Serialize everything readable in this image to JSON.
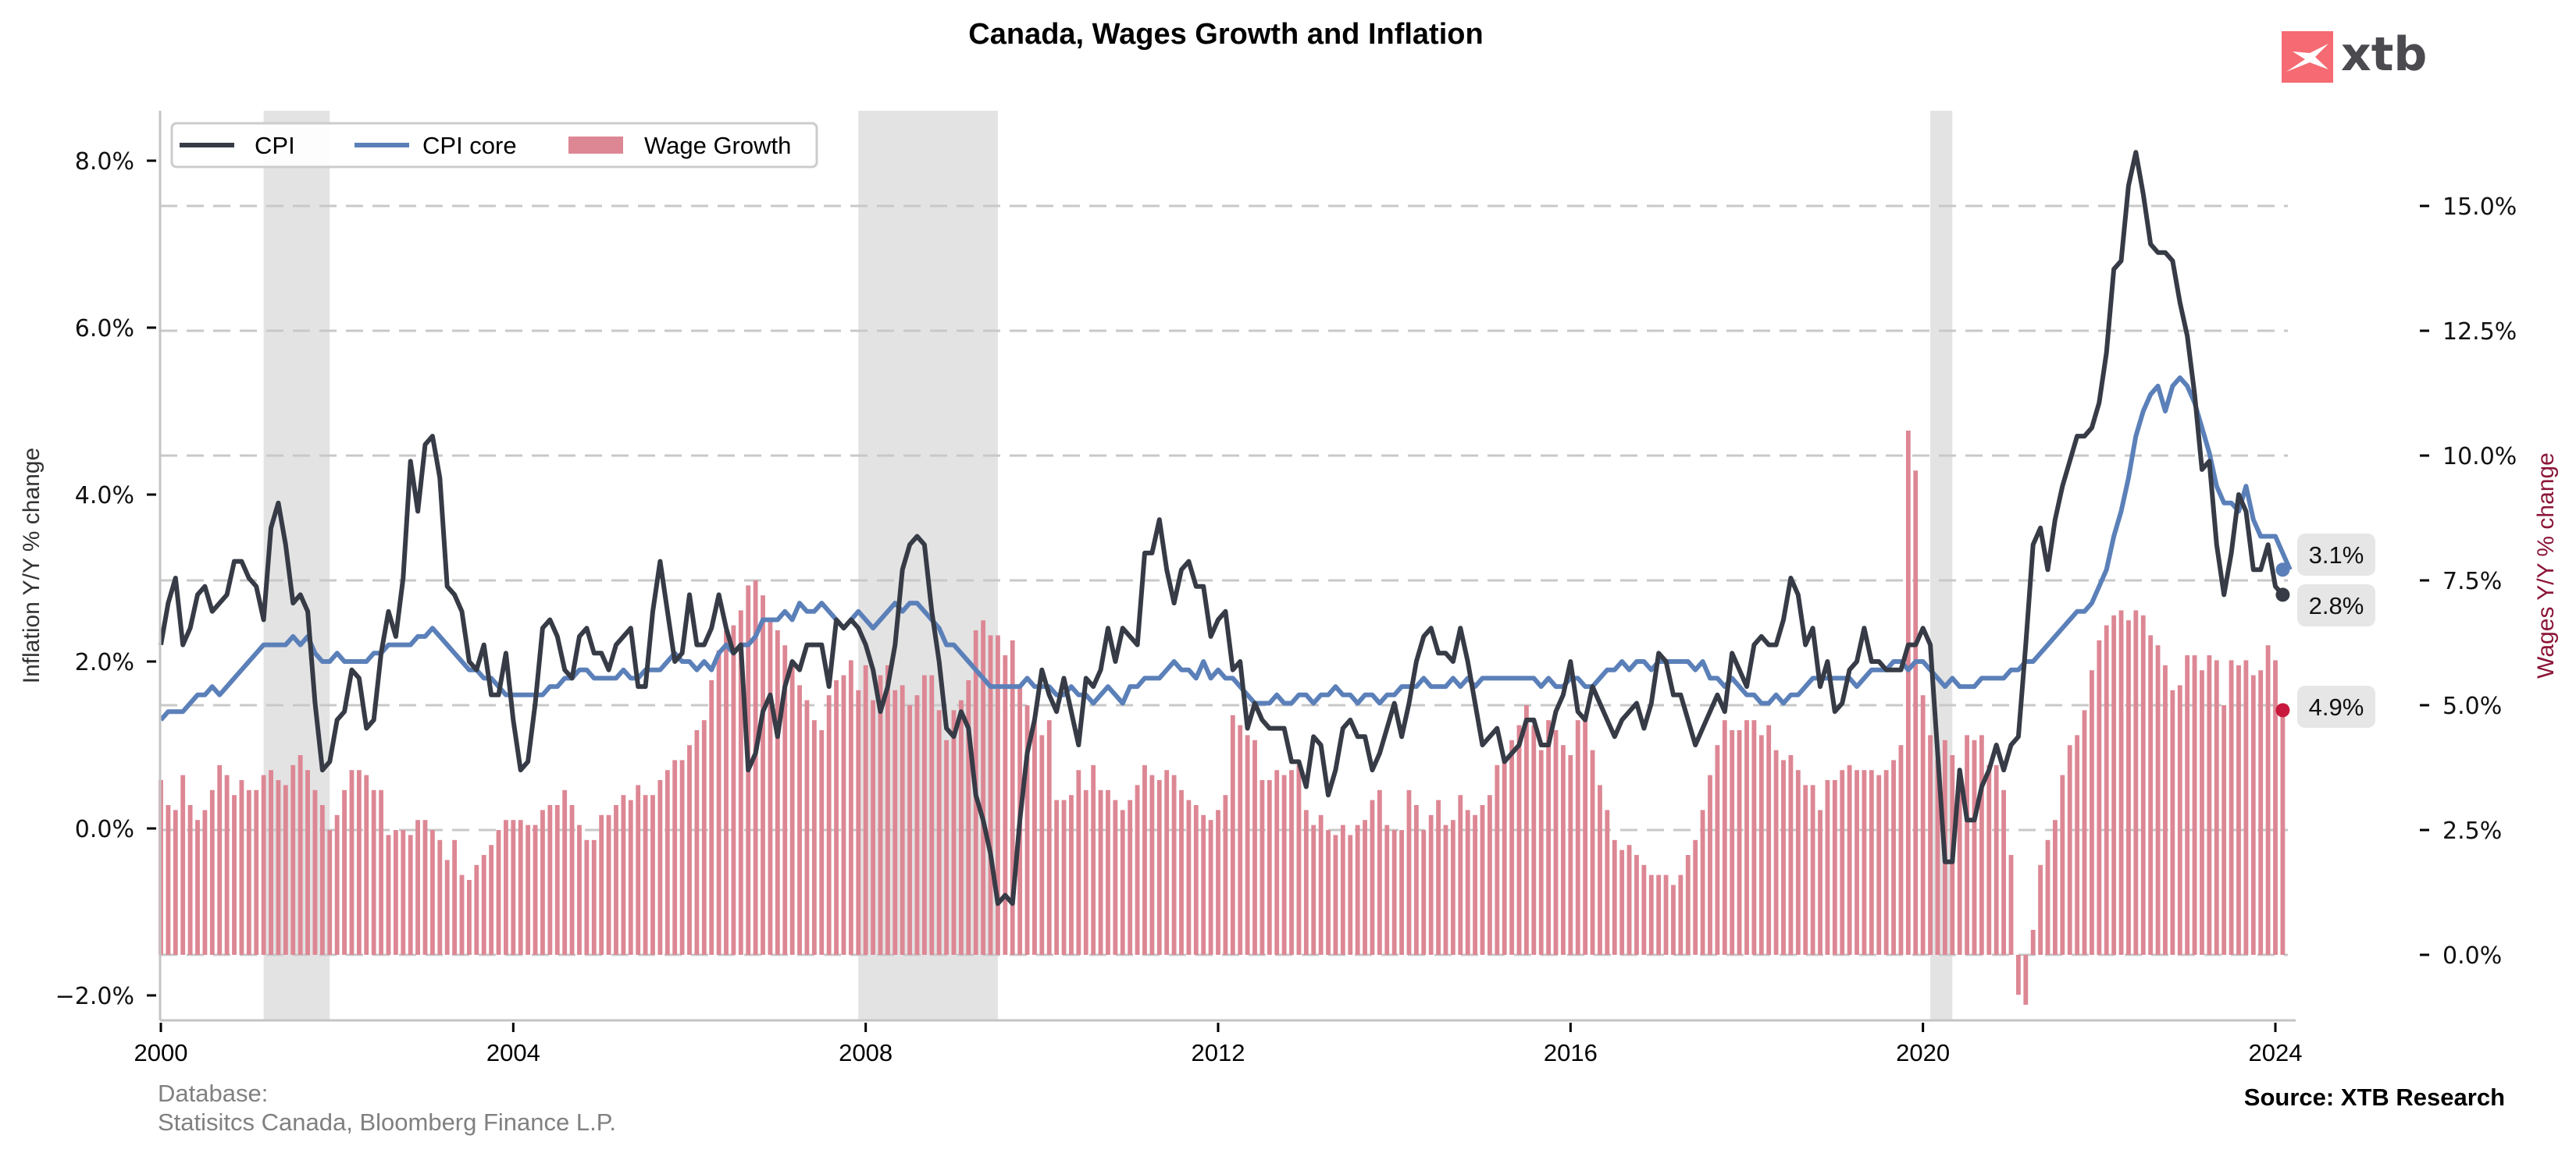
{
  "logo": {
    "text": "xtb",
    "mark_color": "#f56a73"
  },
  "footer": {
    "database_label": "Database:",
    "database_sources": "Statisitcs Canada, Bloomberg Finance L.P.",
    "source": "Source: XTB Research"
  },
  "chart_data": {
    "type": "line+bar",
    "title": "Canada, Wages Growth and Inflation",
    "xlabel": "",
    "ylabel_left": "Inflation Y/Y % change",
    "ylabel_right": "Wages Y/Y % change",
    "x_start": "2000-01",
    "x_frequency": "monthly",
    "x_ticks": [
      "2000",
      "2004",
      "2008",
      "2012",
      "2016",
      "2020",
      "2024"
    ],
    "ylim_left": [
      -2.3,
      8.6
    ],
    "ylim_right": [
      -1.2,
      16.0
    ],
    "yticks_left": [
      "−2.0%",
      "0.0%",
      "2.0%",
      "4.0%",
      "6.0%",
      "8.0%"
    ],
    "yticks_right": [
      "0.0%",
      "2.5%",
      "5.0%",
      "7.5%",
      "10.0%",
      "12.5%",
      "15.0%"
    ],
    "grid": "horizontal dashed (right axis)",
    "legend_position": "top-left",
    "recessions": [
      [
        "2001-03",
        "2001-11"
      ],
      [
        "2007-12",
        "2009-06"
      ],
      [
        "2020-02",
        "2020-04"
      ]
    ],
    "end_labels": [
      {
        "series": "CPI core",
        "text": "3.1%",
        "value": 3.1
      },
      {
        "series": "CPI",
        "text": "2.8%",
        "value": 2.8
      },
      {
        "series": "Wage Growth",
        "text": "4.9%",
        "value": 4.9
      }
    ],
    "series": [
      {
        "name": "CPI",
        "kind": "line",
        "axis": "left",
        "color": "#363b46",
        "values": [
          2.2,
          2.7,
          3.0,
          2.2,
          2.4,
          2.8,
          2.9,
          2.6,
          2.7,
          2.8,
          3.2,
          3.2,
          3.0,
          2.9,
          2.5,
          3.6,
          3.9,
          3.4,
          2.7,
          2.8,
          2.6,
          1.5,
          0.7,
          0.8,
          1.3,
          1.4,
          1.9,
          1.8,
          1.2,
          1.3,
          2.1,
          2.6,
          2.3,
          3.0,
          4.4,
          3.8,
          4.6,
          4.7,
          4.2,
          2.9,
          2.8,
          2.6,
          2.0,
          1.9,
          2.2,
          1.6,
          1.6,
          2.1,
          1.3,
          0.7,
          0.8,
          1.5,
          2.4,
          2.5,
          2.3,
          1.9,
          1.8,
          2.3,
          2.4,
          2.1,
          2.1,
          1.9,
          2.2,
          2.3,
          2.4,
          1.7,
          1.7,
          2.6,
          3.2,
          2.6,
          2.0,
          2.1,
          2.8,
          2.2,
          2.2,
          2.4,
          2.8,
          2.4,
          2.1,
          2.2,
          0.7,
          0.9,
          1.4,
          1.6,
          1.1,
          1.7,
          2.0,
          1.9,
          2.2,
          2.2,
          2.2,
          1.7,
          2.5,
          2.4,
          2.5,
          2.4,
          2.2,
          1.9,
          1.4,
          1.7,
          2.2,
          3.1,
          3.4,
          3.5,
          3.4,
          2.6,
          2.0,
          1.2,
          1.1,
          1.4,
          1.2,
          0.4,
          0.1,
          -0.3,
          -0.9,
          -0.8,
          -0.9,
          0.1,
          0.9,
          1.3,
          1.9,
          1.6,
          1.4,
          1.8,
          1.4,
          1.0,
          1.8,
          1.7,
          1.9,
          2.4,
          2.0,
          2.4,
          2.3,
          2.2,
          3.3,
          3.3,
          3.7,
          3.1,
          2.7,
          3.1,
          3.2,
          2.9,
          2.9,
          2.3,
          2.5,
          2.6,
          1.9,
          2.0,
          1.2,
          1.5,
          1.3,
          1.2,
          1.2,
          1.2,
          0.8,
          0.8,
          0.5,
          1.1,
          1.0,
          0.4,
          0.7,
          1.2,
          1.3,
          1.1,
          1.1,
          0.7,
          0.9,
          1.2,
          1.5,
          1.1,
          1.5,
          2.0,
          2.3,
          2.4,
          2.1,
          2.1,
          2.0,
          2.4,
          2.0,
          1.5,
          1.0,
          1.1,
          1.2,
          0.8,
          0.9,
          1.0,
          1.3,
          1.3,
          1.0,
          1.0,
          1.4,
          1.6,
          2.0,
          1.4,
          1.3,
          1.7,
          1.5,
          1.3,
          1.1,
          1.3,
          1.4,
          1.5,
          1.2,
          1.5,
          2.1,
          2.0,
          1.6,
          1.6,
          1.3,
          1.0,
          1.2,
          1.4,
          1.6,
          1.4,
          2.1,
          1.9,
          1.7,
          2.2,
          2.3,
          2.2,
          2.2,
          2.5,
          3.0,
          2.8,
          2.2,
          2.4,
          1.7,
          2.0,
          1.4,
          1.5,
          1.9,
          2.0,
          2.4,
          2.0,
          2.0,
          1.9,
          1.9,
          1.9,
          2.2,
          2.2,
          2.4,
          2.2,
          0.9,
          -0.4,
          -0.4,
          0.7,
          0.1,
          0.1,
          0.5,
          0.7,
          1.0,
          0.7,
          1.0,
          1.1,
          2.2,
          3.4,
          3.6,
          3.1,
          3.7,
          4.1,
          4.4,
          4.7,
          4.7,
          4.8,
          5.1,
          5.7,
          6.7,
          6.8,
          7.7,
          8.1,
          7.6,
          7.0,
          6.9,
          6.9,
          6.8,
          6.3,
          5.9,
          5.2,
          4.3,
          4.4,
          3.4,
          2.8,
          3.3,
          4.0,
          3.8,
          3.1,
          3.1,
          3.4,
          2.9,
          2.8
        ]
      },
      {
        "name": "CPI core",
        "kind": "line",
        "axis": "left",
        "color": "#5b80b9",
        "values": [
          1.3,
          1.4,
          1.4,
          1.4,
          1.5,
          1.6,
          1.6,
          1.7,
          1.6,
          1.7,
          1.8,
          1.9,
          2.0,
          2.1,
          2.2,
          2.2,
          2.2,
          2.2,
          2.3,
          2.2,
          2.3,
          2.1,
          2.0,
          2.0,
          2.1,
          2.0,
          2.0,
          2.0,
          2.0,
          2.1,
          2.1,
          2.2,
          2.2,
          2.2,
          2.2,
          2.3,
          2.3,
          2.4,
          2.3,
          2.2,
          2.1,
          2.0,
          1.9,
          1.9,
          1.8,
          1.8,
          1.7,
          1.6,
          1.6,
          1.6,
          1.6,
          1.6,
          1.6,
          1.7,
          1.7,
          1.8,
          1.8,
          1.9,
          1.9,
          1.8,
          1.8,
          1.8,
          1.8,
          1.9,
          1.8,
          1.8,
          1.9,
          1.9,
          1.9,
          2.0,
          2.1,
          2.0,
          2.0,
          1.9,
          2.0,
          1.9,
          2.1,
          2.2,
          2.1,
          2.2,
          2.2,
          2.3,
          2.5,
          2.5,
          2.5,
          2.6,
          2.5,
          2.7,
          2.6,
          2.6,
          2.7,
          2.6,
          2.5,
          2.4,
          2.5,
          2.6,
          2.5,
          2.4,
          2.5,
          2.6,
          2.7,
          2.6,
          2.7,
          2.7,
          2.6,
          2.5,
          2.4,
          2.2,
          2.2,
          2.1,
          2.0,
          1.9,
          1.8,
          1.7,
          1.7,
          1.7,
          1.7,
          1.7,
          1.8,
          1.7,
          1.7,
          1.7,
          1.6,
          1.6,
          1.7,
          1.6,
          1.6,
          1.5,
          1.6,
          1.7,
          1.6,
          1.5,
          1.7,
          1.7,
          1.8,
          1.8,
          1.8,
          1.9,
          2.0,
          1.9,
          1.9,
          1.8,
          2.0,
          1.8,
          1.9,
          1.8,
          1.8,
          1.7,
          1.6,
          1.5,
          1.5,
          1.5,
          1.6,
          1.5,
          1.5,
          1.6,
          1.6,
          1.5,
          1.6,
          1.6,
          1.7,
          1.6,
          1.6,
          1.5,
          1.6,
          1.6,
          1.5,
          1.6,
          1.6,
          1.7,
          1.7,
          1.7,
          1.8,
          1.7,
          1.7,
          1.7,
          1.8,
          1.7,
          1.8,
          1.7,
          1.8,
          1.8,
          1.8,
          1.8,
          1.8,
          1.8,
          1.8,
          1.8,
          1.7,
          1.8,
          1.7,
          1.7,
          1.8,
          1.8,
          1.7,
          1.7,
          1.8,
          1.9,
          1.9,
          2.0,
          1.9,
          2.0,
          2.0,
          1.9,
          2.0,
          2.0,
          2.0,
          2.0,
          2.0,
          1.9,
          2.0,
          1.8,
          1.8,
          1.7,
          1.8,
          1.7,
          1.6,
          1.6,
          1.5,
          1.5,
          1.6,
          1.5,
          1.6,
          1.6,
          1.7,
          1.8,
          1.8,
          1.8,
          1.8,
          1.8,
          1.8,
          1.7,
          1.8,
          1.9,
          1.9,
          1.9,
          2.0,
          2.0,
          1.9,
          2.0,
          2.0,
          1.9,
          1.8,
          1.7,
          1.8,
          1.7,
          1.7,
          1.7,
          1.8,
          1.8,
          1.8,
          1.8,
          1.9,
          1.9,
          2.0,
          2.0,
          2.1,
          2.2,
          2.3,
          2.4,
          2.5,
          2.6,
          2.6,
          2.7,
          2.9,
          3.1,
          3.5,
          3.8,
          4.2,
          4.7,
          5.0,
          5.2,
          5.3,
          5.0,
          5.3,
          5.4,
          5.3,
          5.1,
          4.8,
          4.5,
          4.1,
          3.9,
          3.9,
          3.8,
          4.1,
          3.7,
          3.5,
          3.5,
          3.5,
          3.3,
          3.1
        ]
      },
      {
        "name": "Wage Growth",
        "kind": "bar",
        "axis": "right",
        "color": "#dd8794",
        "values": [
          3.5,
          3.0,
          2.9,
          3.6,
          3.0,
          2.7,
          2.9,
          3.3,
          3.8,
          3.6,
          3.2,
          3.5,
          3.3,
          3.3,
          3.6,
          3.7,
          3.5,
          3.4,
          3.8,
          4.0,
          3.7,
          3.3,
          3.0,
          2.5,
          2.8,
          3.3,
          3.7,
          3.7,
          3.6,
          3.3,
          3.3,
          2.4,
          2.5,
          2.5,
          2.4,
          2.7,
          2.7,
          2.5,
          2.3,
          1.9,
          2.3,
          1.6,
          1.5,
          1.8,
          2.0,
          2.2,
          2.5,
          2.7,
          2.7,
          2.7,
          2.6,
          2.6,
          2.9,
          3.0,
          3.0,
          3.3,
          3.0,
          2.6,
          2.3,
          2.3,
          2.8,
          2.8,
          3.0,
          3.2,
          3.1,
          3.4,
          3.2,
          3.2,
          3.5,
          3.7,
          3.9,
          3.9,
          4.2,
          4.5,
          4.7,
          5.5,
          6.1,
          6.5,
          6.6,
          6.9,
          7.4,
          7.5,
          7.2,
          6.7,
          6.5,
          6.2,
          5.9,
          5.4,
          5.1,
          4.7,
          4.5,
          5.2,
          5.5,
          5.6,
          5.9,
          5.3,
          5.8,
          5.1,
          5.6,
          5.8,
          5.3,
          5.4,
          5.0,
          5.2,
          5.6,
          5.6,
          4.9,
          4.3,
          4.9,
          5.1,
          5.5,
          6.5,
          6.7,
          6.4,
          6.4,
          6.0,
          6.3,
          5.4,
          5.0,
          4.7,
          4.4,
          4.7,
          3.1,
          3.1,
          3.2,
          3.7,
          3.3,
          3.8,
          3.3,
          3.3,
          3.1,
          2.9,
          3.1,
          3.4,
          3.8,
          3.6,
          3.5,
          3.7,
          3.6,
          3.3,
          3.1,
          3.0,
          2.8,
          2.7,
          2.9,
          3.2,
          4.8,
          4.6,
          4.4,
          4.3,
          3.5,
          3.5,
          3.7,
          3.6,
          3.7,
          3.8,
          2.9,
          2.6,
          2.8,
          2.5,
          2.4,
          2.6,
          2.4,
          2.6,
          2.7,
          3.1,
          3.3,
          2.6,
          2.5,
          2.5,
          3.3,
          3.0,
          2.5,
          2.8,
          3.1,
          2.6,
          2.7,
          3.2,
          2.9,
          2.8,
          3.0,
          3.2,
          3.8,
          3.9,
          4.3,
          4.6,
          5.0,
          4.6,
          4.1,
          4.7,
          4.5,
          4.2,
          4.0,
          4.7,
          4.8,
          4.1,
          3.4,
          2.9,
          2.3,
          2.1,
          2.2,
          2.0,
          1.8,
          1.6,
          1.6,
          1.6,
          1.4,
          1.6,
          2.0,
          2.3,
          2.9,
          3.6,
          4.2,
          4.7,
          4.5,
          4.5,
          4.7,
          4.7,
          4.4,
          4.6,
          4.1,
          3.9,
          4.0,
          3.7,
          3.4,
          3.4,
          2.9,
          3.5,
          3.5,
          3.7,
          3.8,
          3.7,
          3.7,
          3.7,
          3.6,
          3.7,
          3.9,
          4.2,
          10.5,
          9.7,
          5.2,
          4.4,
          3.9,
          4.3,
          4.0,
          3.7,
          4.4,
          4.3,
          4.4,
          3.8,
          3.8,
          3.3,
          2.0,
          -0.8,
          -1.0,
          0.5,
          1.8,
          2.3,
          2.7,
          3.6,
          4.2,
          4.4,
          4.9,
          5.7,
          6.3,
          6.6,
          6.8,
          6.9,
          6.7,
          6.9,
          6.8,
          6.4,
          6.2,
          5.8,
          5.3,
          5.4,
          6.0,
          6.0,
          5.7,
          6.0,
          5.9,
          5.0,
          5.9,
          5.8,
          5.9,
          5.6,
          5.7,
          6.2,
          5.9,
          4.9
        ]
      }
    ]
  }
}
